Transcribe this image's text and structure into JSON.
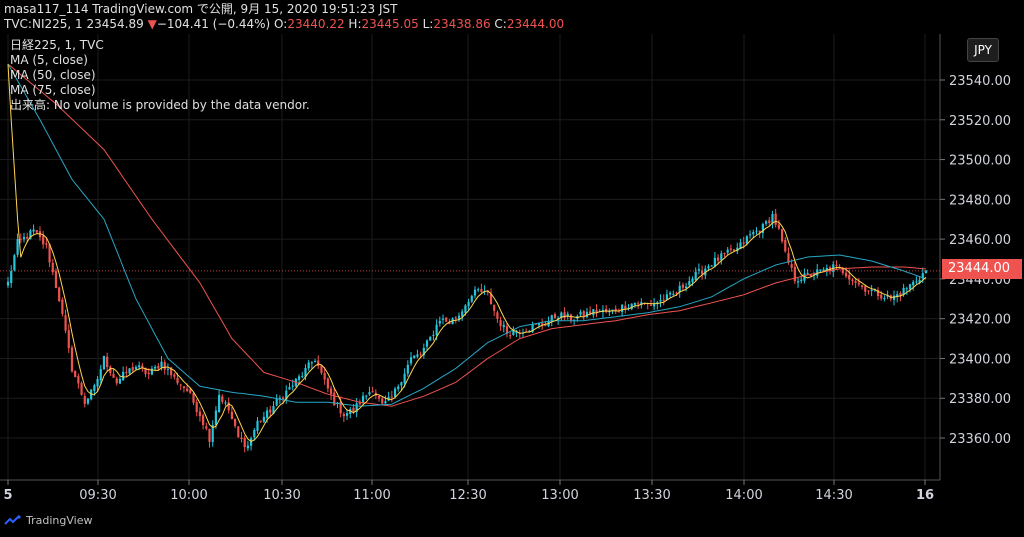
{
  "header": {
    "publish_line": "masa117_114 TradingView.com で公開, 9月 15, 2020 19:51:23 JST",
    "symbol": "TVC:NI225, 1",
    "last": "23454.89",
    "change": "−104.41 (−0.44%)",
    "o_label": "O:",
    "o_value": "23440.22",
    "h_label": "H:",
    "h_value": "23445.05",
    "l_label": "L:",
    "l_value": "23438.86",
    "c_label": "C:",
    "c_value": "23444.00"
  },
  "legend": {
    "title": "日経225, 1, TVC",
    "ma5": "MA (5, close)",
    "ma50": "MA (50, close)",
    "ma75": "MA (75, close)",
    "volume_note": "出来高: No volume is provided by the data vendor."
  },
  "currency": "JPY",
  "current_price_tag": "23444.00",
  "footer": {
    "brand": "TradingView"
  },
  "colors": {
    "background": "#000000",
    "up": "#26c6da",
    "down": "#ef5350",
    "ma5": "#ffd54f",
    "ma50": "#26a7c6",
    "ma75": "#ef5350"
  },
  "chart_data": {
    "type": "candlestick",
    "ylim": [
      23345,
      23560
    ],
    "y_ticks": [
      "23540.00",
      "23520.00",
      "23500.00",
      "23480.00",
      "23460.00",
      "23440.00",
      "23420.00",
      "23400.00",
      "23380.00",
      "23360.00"
    ],
    "x_ticks": [
      "5",
      "09:30",
      "10:00",
      "10:30",
      "11:00",
      "12:30",
      "13:00",
      "13:30",
      "14:00",
      "14:30",
      "16"
    ],
    "close_path": [
      [
        0,
        23438
      ],
      [
        3,
        23458
      ],
      [
        8,
        23464
      ],
      [
        12,
        23456
      ],
      [
        16,
        23430
      ],
      [
        20,
        23395
      ],
      [
        24,
        23378
      ],
      [
        27,
        23385
      ],
      [
        30,
        23400
      ],
      [
        34,
        23388
      ],
      [
        37,
        23393
      ],
      [
        40,
        23396
      ],
      [
        44,
        23392
      ],
      [
        48,
        23398
      ],
      [
        52,
        23390
      ],
      [
        56,
        23384
      ],
      [
        60,
        23372
      ],
      [
        63,
        23360
      ],
      [
        66,
        23382
      ],
      [
        69,
        23374
      ],
      [
        72,
        23360
      ],
      [
        75,
        23356
      ],
      [
        78,
        23368
      ],
      [
        81,
        23372
      ],
      [
        84,
        23378
      ],
      [
        88,
        23385
      ],
      [
        92,
        23392
      ],
      [
        96,
        23400
      ],
      [
        99,
        23388
      ],
      [
        102,
        23378
      ],
      [
        105,
        23372
      ],
      [
        108,
        23374
      ],
      [
        111,
        23380
      ],
      [
        114,
        23385
      ],
      [
        117,
        23376
      ],
      [
        120,
        23380
      ],
      [
        123,
        23390
      ],
      [
        126,
        23400
      ],
      [
        129,
        23402
      ],
      [
        132,
        23410
      ],
      [
        135,
        23420
      ],
      [
        138,
        23418
      ],
      [
        141,
        23422
      ],
      [
        144,
        23430
      ],
      [
        147,
        23434
      ],
      [
        150,
        23432
      ],
      [
        153,
        23420
      ],
      [
        156,
        23413
      ],
      [
        160,
        23414
      ],
      [
        164,
        23416
      ],
      [
        168,
        23418
      ],
      [
        172,
        23422
      ],
      [
        176,
        23420
      ],
      [
        180,
        23422
      ],
      [
        184,
        23424
      ],
      [
        188,
        23423
      ],
      [
        192,
        23426
      ],
      [
        196,
        23428
      ],
      [
        200,
        23427
      ],
      [
        204,
        23429
      ],
      [
        208,
        23432
      ],
      [
        212,
        23438
      ],
      [
        216,
        23443
      ],
      [
        220,
        23448
      ],
      [
        224,
        23452
      ],
      [
        228,
        23455
      ],
      [
        232,
        23462
      ],
      [
        236,
        23466
      ],
      [
        239,
        23472
      ],
      [
        241,
        23464
      ],
      [
        243,
        23452
      ],
      [
        246,
        23440
      ],
      [
        249,
        23441
      ],
      [
        252,
        23443
      ],
      [
        255,
        23444
      ],
      [
        258,
        23446
      ],
      [
        261,
        23444
      ],
      [
        264,
        23440
      ],
      [
        267,
        23436
      ],
      [
        270,
        23434
      ],
      [
        273,
        23432
      ],
      [
        276,
        23430
      ],
      [
        279,
        23433
      ],
      [
        283,
        23438
      ],
      [
        287,
        23444
      ]
    ],
    "ma50_path": [
      [
        0,
        23548
      ],
      [
        10,
        23520
      ],
      [
        20,
        23490
      ],
      [
        30,
        23470
      ],
      [
        40,
        23430
      ],
      [
        50,
        23400
      ],
      [
        60,
        23386
      ],
      [
        70,
        23383
      ],
      [
        80,
        23381
      ],
      [
        90,
        23378
      ],
      [
        100,
        23378
      ],
      [
        110,
        23376
      ],
      [
        120,
        23377
      ],
      [
        130,
        23385
      ],
      [
        140,
        23395
      ],
      [
        150,
        23408
      ],
      [
        160,
        23416
      ],
      [
        170,
        23419
      ],
      [
        180,
        23419
      ],
      [
        190,
        23421
      ],
      [
        200,
        23423
      ],
      [
        210,
        23426
      ],
      [
        220,
        23431
      ],
      [
        230,
        23440
      ],
      [
        240,
        23447
      ],
      [
        250,
        23451
      ],
      [
        260,
        23452
      ],
      [
        270,
        23449
      ],
      [
        280,
        23444
      ],
      [
        287,
        23440
      ]
    ],
    "ma75_path": [
      [
        0,
        23548
      ],
      [
        15,
        23528
      ],
      [
        30,
        23505
      ],
      [
        45,
        23470
      ],
      [
        60,
        23438
      ],
      [
        70,
        23410
      ],
      [
        80,
        23393
      ],
      [
        90,
        23388
      ],
      [
        100,
        23382
      ],
      [
        110,
        23378
      ],
      [
        120,
        23376
      ],
      [
        130,
        23381
      ],
      [
        140,
        23388
      ],
      [
        150,
        23400
      ],
      [
        160,
        23410
      ],
      [
        170,
        23415
      ],
      [
        180,
        23417
      ],
      [
        190,
        23419
      ],
      [
        200,
        23422
      ],
      [
        210,
        23424
      ],
      [
        220,
        23428
      ],
      [
        230,
        23432
      ],
      [
        240,
        23438
      ],
      [
        250,
        23442
      ],
      [
        260,
        23445
      ],
      [
        270,
        23446
      ],
      [
        280,
        23446
      ],
      [
        287,
        23445
      ]
    ]
  }
}
